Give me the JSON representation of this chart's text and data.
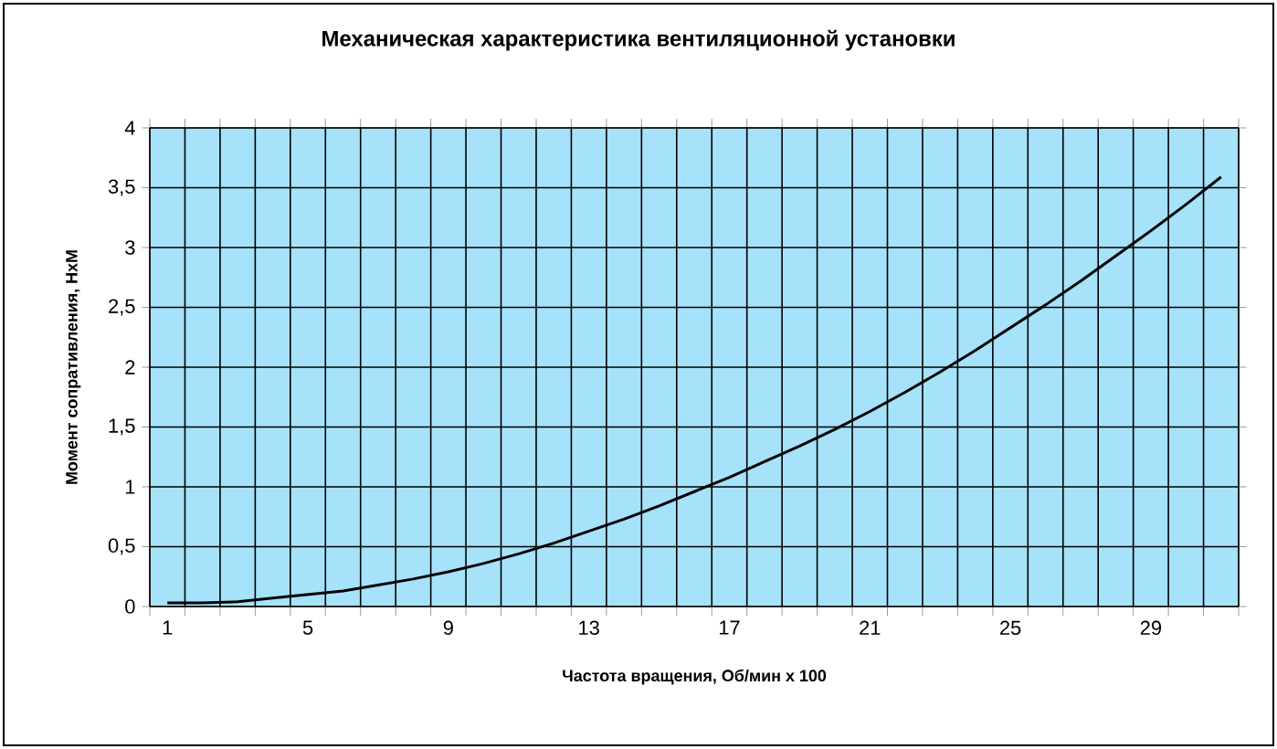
{
  "chart_data": {
    "type": "line",
    "title": "Механическая характеристика вентиляционной установки",
    "xlabel": "Частота вращения, Об/мин х 100",
    "ylabel": "Момент сопративления, НхМ",
    "categories": [
      "1",
      null,
      null,
      null,
      "5",
      null,
      null,
      null,
      "9",
      null,
      null,
      null,
      "13",
      null,
      null,
      null,
      "17",
      null,
      null,
      null,
      "21",
      null,
      null,
      null,
      "25",
      null,
      null,
      null,
      "29",
      null,
      null
    ],
    "series": [
      {
        "color": "#000000",
        "values": [
          0.03,
          0.03,
          0.04,
          0.07,
          0.1,
          0.13,
          0.18,
          0.23,
          0.29,
          0.36,
          0.44,
          0.53,
          0.63,
          0.73,
          0.84,
          0.96,
          1.08,
          1.21,
          1.34,
          1.48,
          1.63,
          1.79,
          1.96,
          2.14,
          2.33,
          2.52,
          2.72,
          2.93,
          3.14,
          3.36,
          3.59
        ]
      }
    ],
    "ylim": [
      0,
      4
    ],
    "yticks": [
      0,
      {
        "value": 0.5,
        "label": "0,5"
      },
      1,
      {
        "value": 1.5,
        "label": "1,5"
      },
      2,
      {
        "value": 2.5,
        "label": "2,5"
      },
      3,
      {
        "value": 3.5,
        "label": "3,5"
      },
      4
    ],
    "grid": true,
    "marker": "none",
    "line_style": "solid"
  }
}
